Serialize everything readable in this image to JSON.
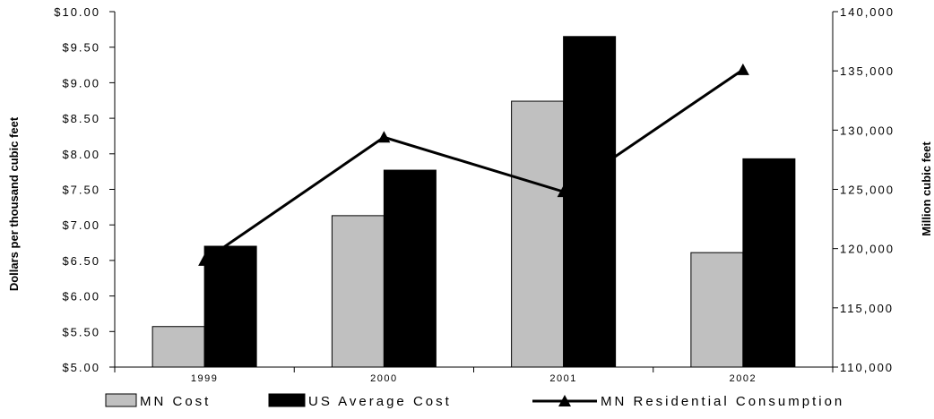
{
  "chart_data": {
    "type": "bar",
    "categories": [
      "1999",
      "2000",
      "2001",
      "2002"
    ],
    "series": [
      {
        "name": "MN Cost",
        "type": "bar",
        "axis": "left",
        "color": "#c0c0c0",
        "values": [
          5.57,
          7.13,
          8.74,
          6.61
        ]
      },
      {
        "name": "US Average Cost",
        "type": "bar",
        "axis": "left",
        "color": "#000000",
        "values": [
          6.7,
          7.77,
          9.65,
          7.93
        ]
      },
      {
        "name": "MN Residential Consumption",
        "type": "line",
        "axis": "right",
        "color": "#000000",
        "marker": "triangle",
        "values": [
          119000,
          129400,
          124800,
          135100
        ]
      }
    ],
    "ylabel": "Dollars per thousand cubic feet",
    "y2label": "Million cubic feet",
    "ylim": [
      5.0,
      10.0
    ],
    "y2lim": [
      110000,
      140000
    ],
    "yticks": [
      "$5.00",
      "$5.50",
      "$6.00",
      "$6.50",
      "$7.00",
      "$7.50",
      "$8.00",
      "$8.50",
      "$9.00",
      "$9.50",
      "$10.00"
    ],
    "y2ticks": [
      "110,000",
      "115,000",
      "120,000",
      "125,000",
      "130,000",
      "135,000",
      "140,000"
    ],
    "grid": false,
    "legend_position": "bottom"
  }
}
